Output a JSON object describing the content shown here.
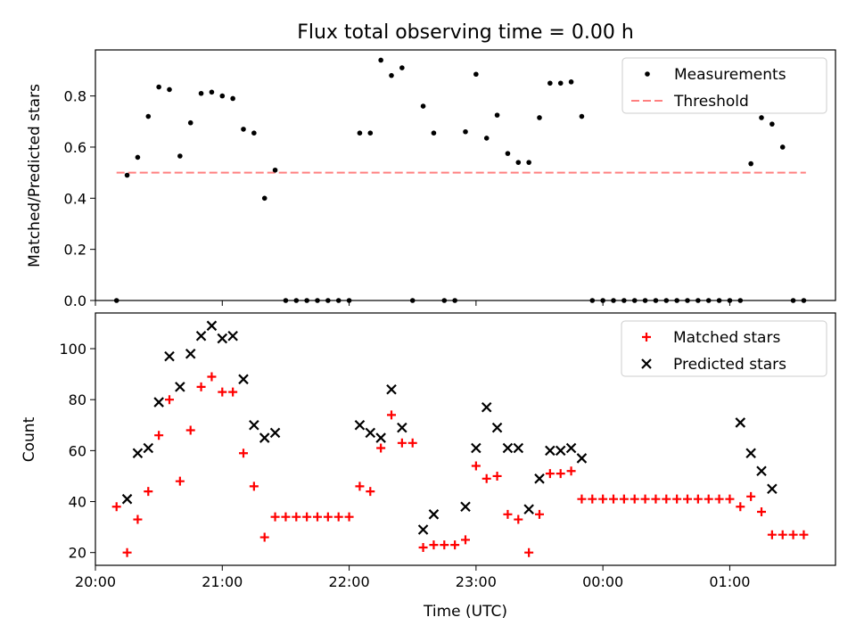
{
  "title": "Flux total observing time = 0.00 h",
  "chart_data": [
    {
      "type": "scatter",
      "ylabel": "Matched/Predicted stars",
      "ylim": [
        0,
        0.98
      ],
      "yticks": [
        0.0,
        0.2,
        0.4,
        0.6,
        0.8
      ],
      "ytick_labels": [
        "0.0",
        "0.2",
        "0.4",
        "0.6",
        "0.8"
      ],
      "xlim": [
        "20:00",
        "01:50"
      ],
      "legend": "top-right",
      "legend_entries": [
        "Measurements",
        "Threshold"
      ],
      "threshold": {
        "name": "Threshold",
        "y": 0.5,
        "x_from": "20:10",
        "x_to": "01:36",
        "color": "#ff8080"
      },
      "series": [
        {
          "name": "Measurements",
          "color": "#000000",
          "x": [
            "20:10",
            "20:15",
            "20:20",
            "20:25",
            "20:30",
            "20:35",
            "20:40",
            "20:45",
            "20:50",
            "20:55",
            "21:00",
            "21:05",
            "21:10",
            "21:15",
            "21:20",
            "21:25",
            "21:30",
            "21:35",
            "21:40",
            "21:45",
            "21:50",
            "21:55",
            "22:00",
            "22:05",
            "22:10",
            "22:15",
            "22:20",
            "22:25",
            "22:30",
            "22:35",
            "22:40",
            "22:45",
            "22:50",
            "22:55",
            "23:00",
            "23:05",
            "23:10",
            "23:15",
            "23:20",
            "23:25",
            "23:30",
            "23:35",
            "23:40",
            "23:45",
            "23:50",
            "23:55",
            "00:00",
            "00:05",
            "00:10",
            "00:15",
            "00:20",
            "00:25",
            "00:30",
            "00:35",
            "00:40",
            "00:45",
            "00:50",
            "00:55",
            "01:00",
            "01:05",
            "01:10",
            "01:15",
            "01:20",
            "01:25",
            "01:30",
            "01:35"
          ],
          "y": [
            0.0,
            0.49,
            0.56,
            0.72,
            0.835,
            0.825,
            0.565,
            0.695,
            0.81,
            0.815,
            0.8,
            0.79,
            0.67,
            0.655,
            0.4,
            0.51,
            0.0,
            0.0,
            0.0,
            0.0,
            0.0,
            0.0,
            0.0,
            0.655,
            0.655,
            0.94,
            0.88,
            0.91,
            0.0,
            0.76,
            0.655,
            0.0,
            0.0,
            0.66,
            0.885,
            0.635,
            0.725,
            0.575,
            0.54,
            0.54,
            0.715,
            0.85,
            0.85,
            0.855,
            0.72,
            0.0,
            0.0,
            0.0,
            0.0,
            0.0,
            0.0,
            0.0,
            0.0,
            0.0,
            0.0,
            0.0,
            0.0,
            0.0,
            0.0,
            0.0,
            0.535,
            0.715,
            0.69,
            0.6,
            0.0,
            0.0
          ]
        }
      ]
    },
    {
      "type": "scatter",
      "xlabel": "Time (UTC)",
      "ylabel": "Count",
      "ylim": [
        15,
        114
      ],
      "yticks": [
        20,
        40,
        60,
        80,
        100
      ],
      "ytick_labels": [
        "20",
        "40",
        "60",
        "80",
        "100"
      ],
      "xlim": [
        "20:00",
        "01:50"
      ],
      "xtick_labels": [
        "20:00",
        "21:00",
        "22:00",
        "23:00",
        "00:00",
        "01:00"
      ],
      "legend": "top-right",
      "legend_entries": [
        "Matched stars",
        "Predicted stars"
      ],
      "series": [
        {
          "name": "Matched stars",
          "marker": "plus",
          "color": "#ff0000",
          "x": [
            "20:10",
            "20:15",
            "20:20",
            "20:25",
            "20:30",
            "20:35",
            "20:40",
            "20:45",
            "20:50",
            "20:55",
            "21:00",
            "21:05",
            "21:10",
            "21:15",
            "21:20",
            "21:25",
            "21:30",
            "21:35",
            "21:40",
            "21:45",
            "21:50",
            "21:55",
            "22:00",
            "22:05",
            "22:10",
            "22:15",
            "22:20",
            "22:25",
            "22:30",
            "22:35",
            "22:40",
            "22:45",
            "22:50",
            "22:55",
            "23:00",
            "23:05",
            "23:10",
            "23:15",
            "23:20",
            "23:25",
            "23:30",
            "23:35",
            "23:40",
            "23:45",
            "23:50",
            "23:55",
            "00:00",
            "00:05",
            "00:10",
            "00:15",
            "00:20",
            "00:25",
            "00:30",
            "00:35",
            "00:40",
            "00:45",
            "00:50",
            "00:55",
            "01:00",
            "01:05",
            "01:10",
            "01:15",
            "01:20",
            "01:25",
            "01:30",
            "01:35"
          ],
          "y": [
            38,
            20,
            33,
            44,
            66,
            80,
            48,
            68,
            85,
            89,
            83,
            83,
            59,
            46,
            26,
            34,
            34,
            34,
            34,
            34,
            34,
            34,
            34,
            46,
            44,
            61,
            74,
            63,
            63,
            22,
            23,
            23,
            23,
            25,
            54,
            49,
            50,
            35,
            33,
            20,
            35,
            51,
            51,
            52,
            41,
            41,
            41,
            41,
            41,
            41,
            41,
            41,
            41,
            41,
            41,
            41,
            41,
            41,
            41,
            38,
            42,
            36,
            27,
            27,
            27,
            27
          ]
        },
        {
          "name": "Predicted stars",
          "marker": "x",
          "color": "#000000",
          "x": [
            "20:15",
            "20:20",
            "20:25",
            "20:30",
            "20:35",
            "20:40",
            "20:45",
            "20:50",
            "20:55",
            "21:00",
            "21:05",
            "21:10",
            "21:15",
            "21:20",
            "21:25",
            "22:05",
            "22:10",
            "22:15",
            "22:20",
            "22:25",
            "22:35",
            "22:40",
            "22:55",
            "23:00",
            "23:05",
            "23:10",
            "23:15",
            "23:20",
            "23:25",
            "23:30",
            "23:35",
            "23:40",
            "23:45",
            "23:50",
            "01:05",
            "01:10",
            "01:15",
            "01:20"
          ],
          "y": [
            41,
            59,
            61,
            79,
            97,
            85,
            98,
            105,
            109,
            104,
            105,
            88,
            70,
            65,
            67,
            70,
            67,
            65,
            84,
            69,
            29,
            35,
            38,
            61,
            77,
            69,
            61,
            61,
            37,
            49,
            60,
            60,
            61,
            57,
            71,
            59,
            52,
            45
          ]
        }
      ]
    }
  ]
}
